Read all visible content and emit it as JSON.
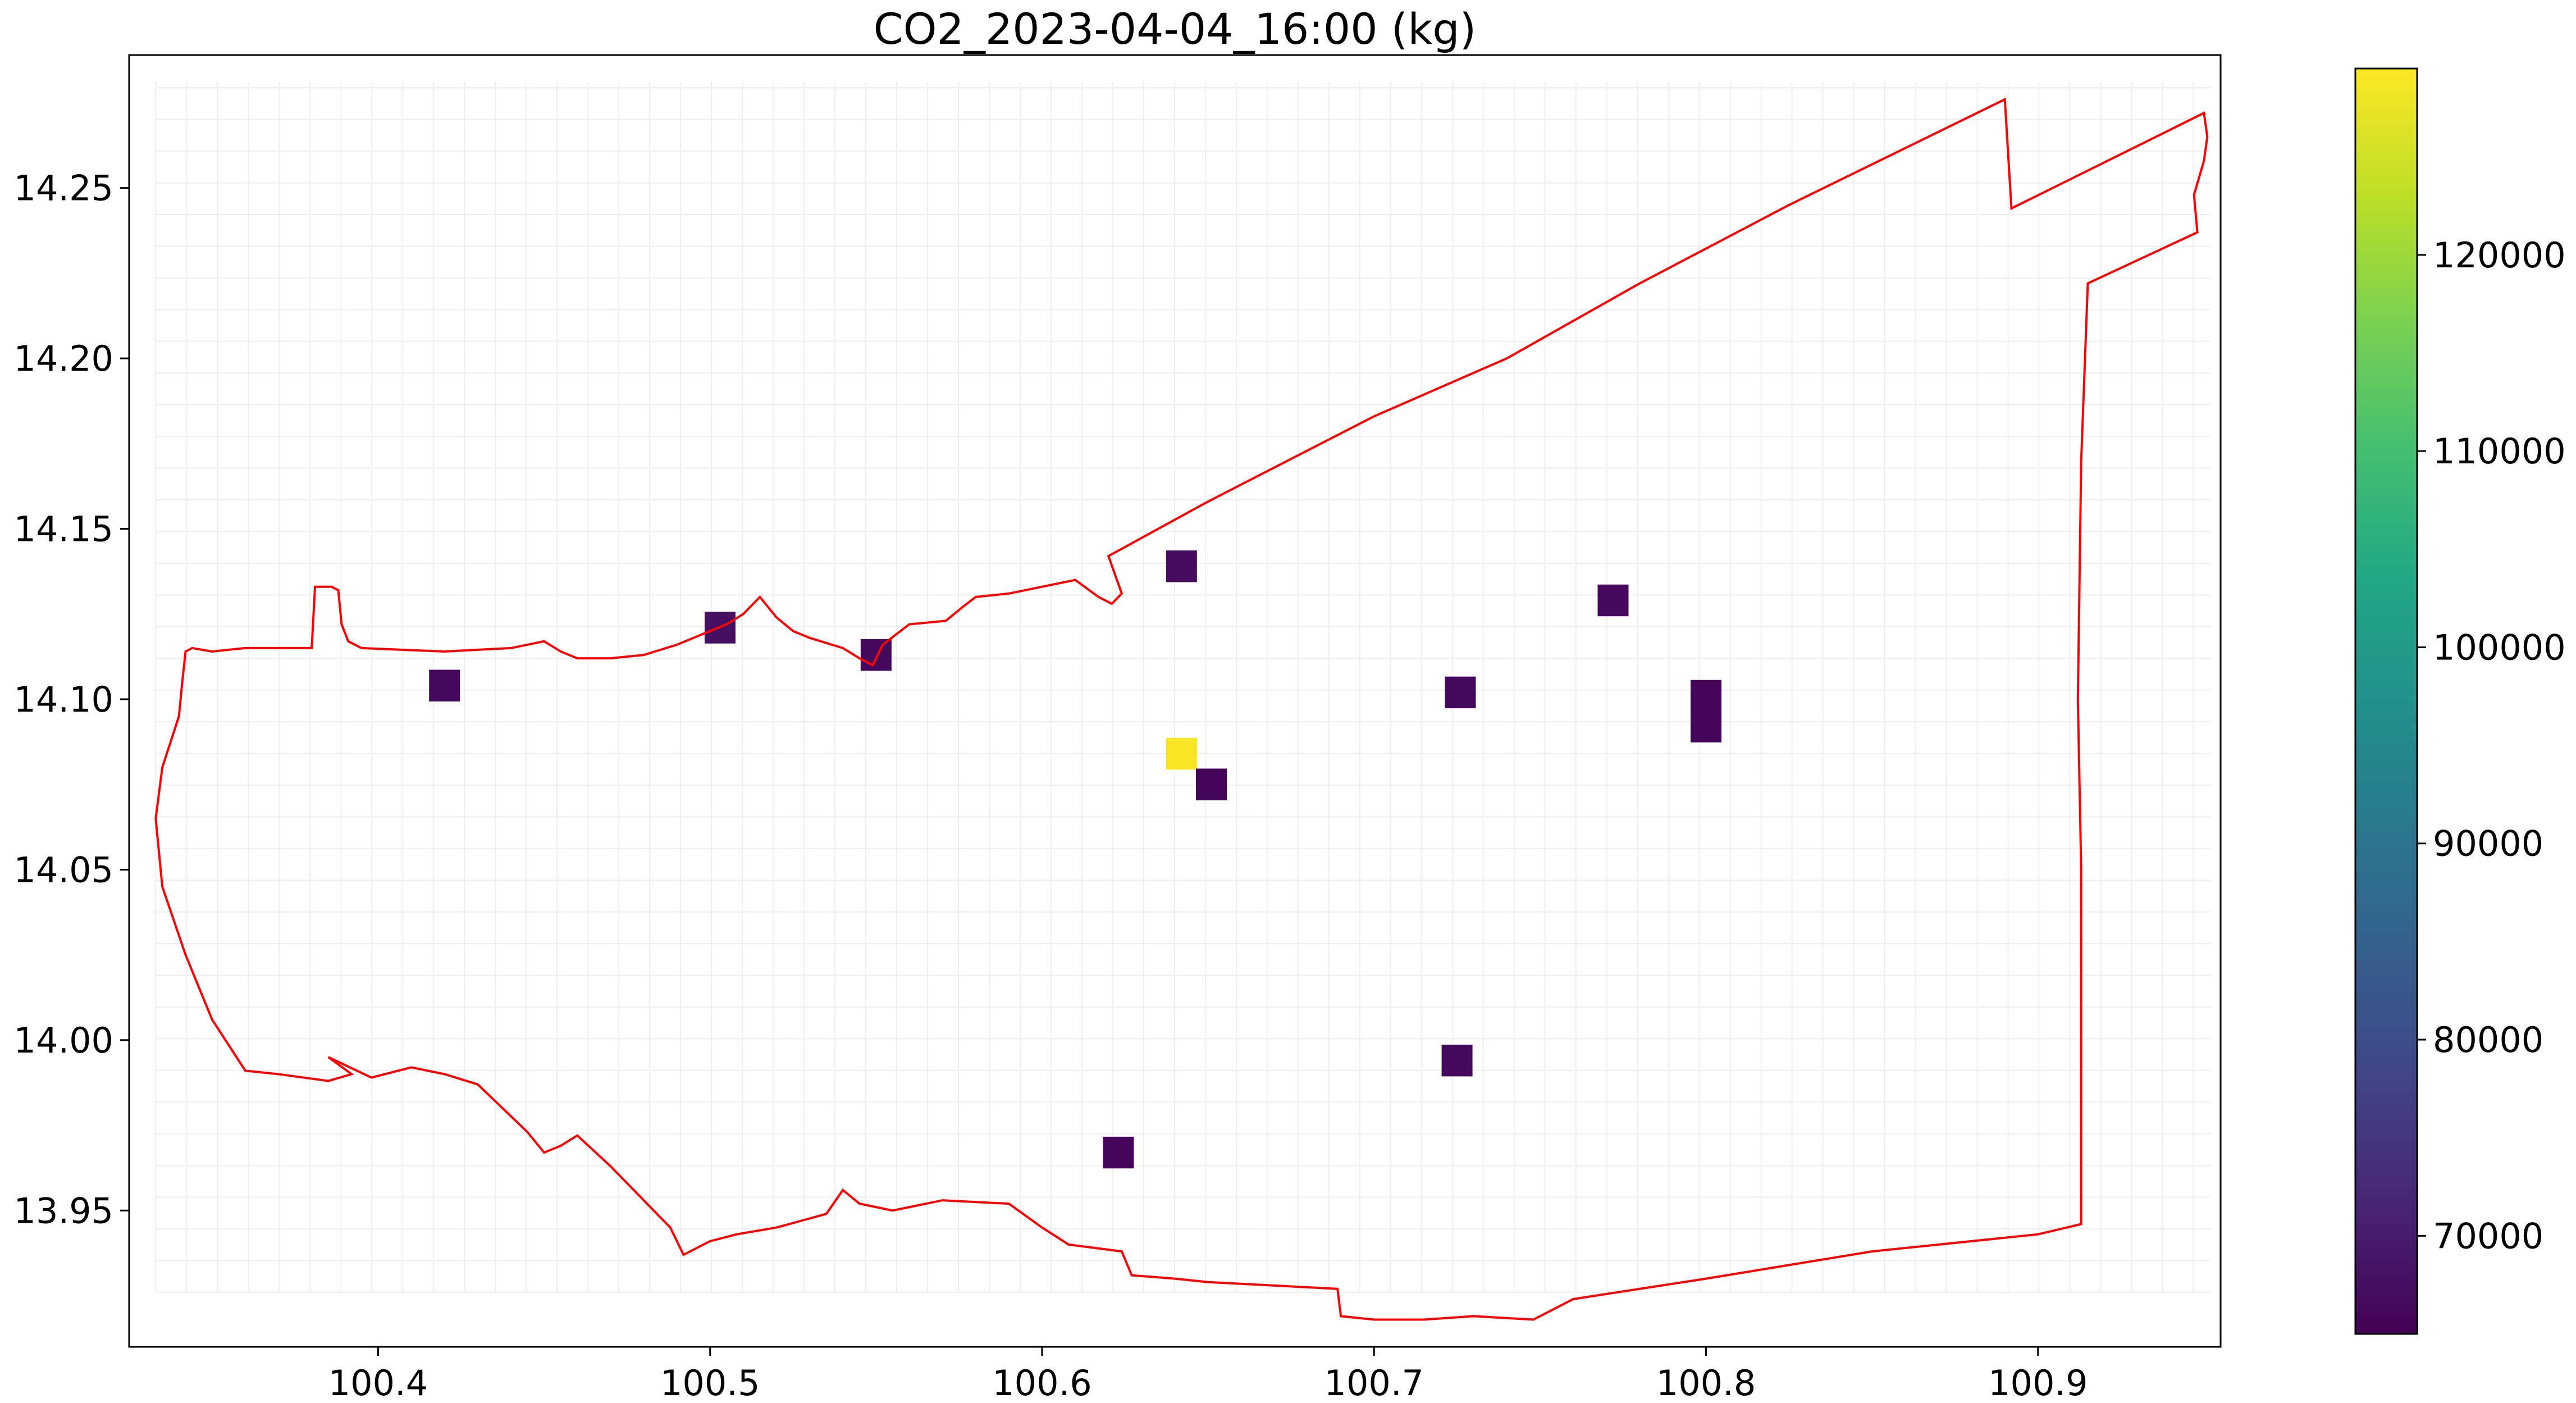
{
  "chart_data": {
    "type": "heatmap",
    "title": "CO2_2023-04-04_16:00 (kg)",
    "xlabel": "",
    "ylabel": "",
    "xlim": [
      100.325,
      100.955
    ],
    "ylim": [
      13.91,
      14.289
    ],
    "x_ticks": [
      {
        "value": 100.4,
        "label": "100.4"
      },
      {
        "value": 100.5,
        "label": "100.5"
      },
      {
        "value": 100.6,
        "label": "100.6"
      },
      {
        "value": 100.7,
        "label": "100.7"
      },
      {
        "value": 100.8,
        "label": "100.8"
      },
      {
        "value": 100.9,
        "label": "100.9"
      }
    ],
    "y_ticks": [
      {
        "value": 13.95,
        "label": "13.95"
      },
      {
        "value": 14.0,
        "label": "14.00"
      },
      {
        "value": 14.05,
        "label": "14.05"
      },
      {
        "value": 14.1,
        "label": "14.10"
      },
      {
        "value": 14.15,
        "label": "14.15"
      },
      {
        "value": 14.2,
        "label": "14.20"
      },
      {
        "value": 14.25,
        "label": "14.25"
      }
    ],
    "grid": true,
    "grid_extent": {
      "x": [
        100.333,
        100.952
      ],
      "y": [
        13.926,
        14.281
      ]
    },
    "grid_step": 0.0093,
    "cells": [
      {
        "x": 100.42,
        "y": 14.104,
        "value": 66500
      },
      {
        "x": 100.503,
        "y": 14.121,
        "value": 67500
      },
      {
        "x": 100.55,
        "y": 14.113,
        "value": 66500
      },
      {
        "x": 100.642,
        "y": 14.139,
        "value": 67000
      },
      {
        "x": 100.642,
        "y": 14.084,
        "value": 129000
      },
      {
        "x": 100.651,
        "y": 14.075,
        "value": 66000
      },
      {
        "x": 100.772,
        "y": 14.129,
        "value": 66500
      },
      {
        "x": 100.726,
        "y": 14.102,
        "value": 66500
      },
      {
        "x": 100.8,
        "y": 14.101,
        "value": 66000
      },
      {
        "x": 100.8,
        "y": 14.092,
        "value": 66000
      },
      {
        "x": 100.725,
        "y": 13.994,
        "value": 66500
      },
      {
        "x": 100.623,
        "y": 13.967,
        "value": 66000
      }
    ],
    "cell_size": 0.0093,
    "boundary_color": "#ff0000",
    "grid_color": "#eeeeee",
    "colorbar": {
      "colormap": "viridis",
      "vmin": 65000,
      "vmax": 129500,
      "ticks": [
        {
          "value": 70000,
          "label": "70000"
        },
        {
          "value": 80000,
          "label": "80000"
        },
        {
          "value": 90000,
          "label": "90000"
        },
        {
          "value": 100000,
          "label": "100000"
        },
        {
          "value": 110000,
          "label": "110000"
        },
        {
          "value": 120000,
          "label": "120000"
        }
      ]
    },
    "boundary": [
      [
        100.342,
        14.114
      ],
      [
        100.344,
        14.115
      ],
      [
        100.35,
        14.114
      ],
      [
        100.36,
        14.115
      ],
      [
        100.37,
        14.115
      ],
      [
        100.38,
        14.115
      ],
      [
        100.381,
        14.133
      ],
      [
        100.386,
        14.133
      ],
      [
        100.388,
        14.132
      ],
      [
        100.389,
        14.122
      ],
      [
        100.391,
        14.117
      ],
      [
        100.395,
        14.115
      ],
      [
        100.42,
        14.114
      ],
      [
        100.44,
        14.115
      ],
      [
        100.45,
        14.117
      ],
      [
        100.455,
        14.114
      ],
      [
        100.46,
        14.112
      ],
      [
        100.47,
        14.112
      ],
      [
        100.48,
        14.113
      ],
      [
        100.49,
        14.116
      ],
      [
        100.5,
        14.12
      ],
      [
        100.505,
        14.122
      ],
      [
        100.51,
        14.125
      ],
      [
        100.515,
        14.13
      ],
      [
        100.52,
        14.124
      ],
      [
        100.525,
        14.12
      ],
      [
        100.53,
        14.118
      ],
      [
        100.54,
        14.115
      ],
      [
        100.545,
        14.112
      ],
      [
        100.549,
        14.11
      ],
      [
        100.552,
        14.116
      ],
      [
        100.556,
        14.119
      ],
      [
        100.56,
        14.122
      ],
      [
        100.571,
        14.123
      ],
      [
        100.576,
        14.127
      ],
      [
        100.58,
        14.13
      ],
      [
        100.59,
        14.131
      ],
      [
        100.6,
        14.133
      ],
      [
        100.61,
        14.135
      ],
      [
        100.617,
        14.13
      ],
      [
        100.621,
        14.128
      ],
      [
        100.624,
        14.131
      ],
      [
        100.62,
        14.142
      ],
      [
        100.65,
        14.158
      ],
      [
        100.7,
        14.183
      ],
      [
        100.74,
        14.2
      ],
      [
        100.78,
        14.222
      ],
      [
        100.825,
        14.245
      ],
      [
        100.89,
        14.276
      ],
      [
        100.892,
        14.244
      ],
      [
        100.95,
        14.272
      ],
      [
        100.951,
        14.265
      ],
      [
        100.95,
        14.258
      ],
      [
        100.947,
        14.248
      ],
      [
        100.948,
        14.237
      ],
      [
        100.915,
        14.222
      ],
      [
        100.913,
        14.17
      ],
      [
        100.912,
        14.1
      ],
      [
        100.913,
        14.05
      ],
      [
        100.913,
        13.946
      ],
      [
        100.9,
        13.943
      ],
      [
        100.85,
        13.938
      ],
      [
        100.8,
        13.93
      ],
      [
        100.76,
        13.924
      ],
      [
        100.748,
        13.918
      ],
      [
        100.73,
        13.919
      ],
      [
        100.715,
        13.918
      ],
      [
        100.7,
        13.918
      ],
      [
        100.69,
        13.919
      ],
      [
        100.689,
        13.927
      ],
      [
        100.65,
        13.929
      ],
      [
        100.64,
        13.93
      ],
      [
        100.627,
        13.931
      ],
      [
        100.624,
        13.938
      ],
      [
        100.608,
        13.94
      ],
      [
        100.6,
        13.945
      ],
      [
        100.59,
        13.952
      ],
      [
        100.57,
        13.953
      ],
      [
        100.555,
        13.95
      ],
      [
        100.545,
        13.952
      ],
      [
        100.54,
        13.956
      ],
      [
        100.535,
        13.949
      ],
      [
        100.52,
        13.945
      ],
      [
        100.508,
        13.943
      ],
      [
        100.5,
        13.941
      ],
      [
        100.492,
        13.937
      ],
      [
        100.488,
        13.945
      ],
      [
        100.48,
        13.953
      ],
      [
        100.47,
        13.963
      ],
      [
        100.46,
        13.972
      ],
      [
        100.455,
        13.969
      ],
      [
        100.45,
        13.967
      ],
      [
        100.445,
        13.973
      ],
      [
        100.43,
        13.987
      ],
      [
        100.42,
        13.99
      ],
      [
        100.41,
        13.992
      ],
      [
        100.398,
        13.989
      ],
      [
        100.385,
        13.995
      ],
      [
        100.392,
        13.99
      ],
      [
        100.385,
        13.988
      ],
      [
        100.37,
        13.99
      ],
      [
        100.36,
        13.991
      ],
      [
        100.35,
        14.006
      ],
      [
        100.342,
        14.025
      ],
      [
        100.335,
        14.045
      ],
      [
        100.333,
        14.065
      ],
      [
        100.335,
        14.08
      ],
      [
        100.34,
        14.095
      ],
      [
        100.341,
        14.105
      ],
      [
        100.342,
        14.114
      ]
    ]
  }
}
